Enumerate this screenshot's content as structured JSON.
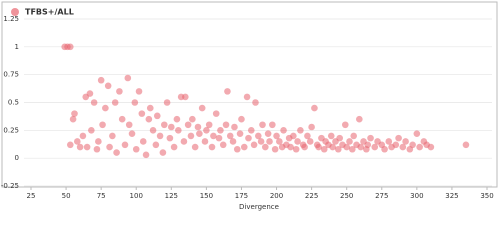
{
  "chart_data": {
    "type": "scatter",
    "x_label": "Divergence",
    "xlim": [
      25,
      350
    ],
    "ylim": [
      -0.25,
      1.25
    ],
    "xticks": [
      25,
      50,
      75,
      100,
      125,
      150,
      175,
      200,
      225,
      250,
      275,
      300,
      325,
      350
    ],
    "yticks": [
      -0.25,
      0,
      0.25,
      0.5,
      0.75,
      1,
      1.25
    ],
    "grid": true,
    "legend": "upper left",
    "series": [
      {
        "name": "TFBS+/ALL",
        "color": "#e8656f",
        "x": [
          49,
          51,
          53,
          53,
          55,
          56,
          58,
          60,
          62,
          64,
          65,
          67,
          68,
          70,
          72,
          73,
          75,
          76,
          78,
          80,
          81,
          83,
          85,
          86,
          88,
          90,
          92,
          94,
          95,
          97,
          99,
          100,
          102,
          104,
          105,
          107,
          109,
          110,
          112,
          114,
          115,
          117,
          119,
          120,
          122,
          124,
          125,
          127,
          129,
          130,
          132,
          134,
          135,
          137,
          139,
          140,
          142,
          144,
          145,
          147,
          149,
          150,
          152,
          154,
          155,
          157,
          159,
          160,
          162,
          164,
          165,
          167,
          169,
          170,
          172,
          174,
          175,
          177,
          179,
          180,
          182,
          184,
          185,
          187,
          189,
          190,
          192,
          194,
          195,
          197,
          199,
          200,
          202,
          204,
          205,
          207,
          209,
          210,
          212,
          214,
          215,
          217,
          219,
          220,
          222,
          224,
          225,
          227,
          229,
          230,
          232,
          234,
          235,
          237,
          239,
          240,
          242,
          244,
          245,
          247,
          249,
          250,
          252,
          254,
          255,
          257,
          259,
          260,
          262,
          264,
          265,
          267,
          270,
          272,
          275,
          277,
          280,
          282,
          285,
          287,
          290,
          292,
          295,
          297,
          300,
          302,
          305,
          307,
          310,
          335
        ],
        "values": [
          1,
          1,
          1,
          0.12,
          0.35,
          0.4,
          0.15,
          0.1,
          0.2,
          0.55,
          0.1,
          0.58,
          0.25,
          0.5,
          0.08,
          0.15,
          0.7,
          0.3,
          0.45,
          0.65,
          0.1,
          0.2,
          0.5,
          0.05,
          0.6,
          0.35,
          0.12,
          0.72,
          0.3,
          0.22,
          0.5,
          0.08,
          0.6,
          0.4,
          0.15,
          0.03,
          0.35,
          0.45,
          0.25,
          0.12,
          0.38,
          0.2,
          0.05,
          0.3,
          0.5,
          0.18,
          0.28,
          0.1,
          0.35,
          0.25,
          0.55,
          0.15,
          0.55,
          0.3,
          0.2,
          0.35,
          0.1,
          0.28,
          0.22,
          0.45,
          0.15,
          0.25,
          0.3,
          0.1,
          0.2,
          0.4,
          0.18,
          0.25,
          0.12,
          0.3,
          0.6,
          0.2,
          0.15,
          0.28,
          0.08,
          0.22,
          0.35,
          0.1,
          0.55,
          0.18,
          0.25,
          0.12,
          0.5,
          0.2,
          0.15,
          0.3,
          0.1,
          0.22,
          0.15,
          0.3,
          0.08,
          0.2,
          0.15,
          0.1,
          0.25,
          0.12,
          0.18,
          0.1,
          0.2,
          0.08,
          0.15,
          0.25,
          0.12,
          0.1,
          0.2,
          0.15,
          0.28,
          0.45,
          0.12,
          0.1,
          0.18,
          0.08,
          0.15,
          0.12,
          0.2,
          0.1,
          0.15,
          0.08,
          0.18,
          0.12,
          0.3,
          0.1,
          0.15,
          0.08,
          0.2,
          0.12,
          0.35,
          0.1,
          0.15,
          0.08,
          0.12,
          0.18,
          0.1,
          0.15,
          0.12,
          0.08,
          0.15,
          0.1,
          0.12,
          0.18,
          0.1,
          0.15,
          0.08,
          0.12,
          0.22,
          0.1,
          0.15,
          0.12,
          0.1,
          0.12
        ]
      }
    ]
  }
}
